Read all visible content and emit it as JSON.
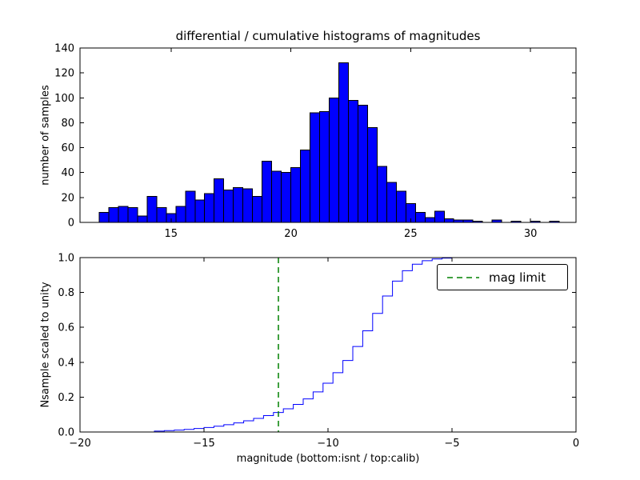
{
  "figure": {
    "title": "differential / cumulative histograms of magnitudes",
    "background_color": "#ffffff"
  },
  "chart_data": [
    {
      "type": "bar",
      "name": "differential-histogram",
      "ylabel": "number of samples",
      "xlim": [
        11.2,
        31.9
      ],
      "ylim": [
        0,
        140
      ],
      "grid": false,
      "xticks": {
        "values": [
          15,
          20,
          25,
          30
        ],
        "labels": [
          "15",
          "20",
          "25",
          "30"
        ]
      },
      "yticks": {
        "values": [
          0,
          20,
          40,
          60,
          80,
          100,
          120,
          140
        ],
        "labels": [
          "0",
          "20",
          "40",
          "60",
          "80",
          "100",
          "120",
          "140"
        ]
      },
      "bar_color": "#0000ff",
      "bar_edge_color": "#000000",
      "bins_start": 12.0,
      "bin_width": 0.4,
      "counts": [
        8,
        12,
        13,
        12,
        5,
        21,
        12,
        7,
        13,
        25,
        18,
        23,
        35,
        26,
        28,
        27,
        21,
        49,
        41,
        40,
        44,
        58,
        88,
        89,
        100,
        128,
        98,
        94,
        76,
        45,
        32,
        25,
        15,
        8,
        4,
        9,
        3,
        2,
        2,
        1,
        0,
        2,
        0,
        1,
        0,
        1,
        0,
        1
      ]
    },
    {
      "type": "line",
      "name": "cumulative-histogram",
      "ylabel": "Nsample scaled to unity",
      "xlabel": "magnitude (bottom:isnt / top:calib)",
      "xlim": [
        -20,
        0
      ],
      "ylim": [
        0.0,
        1.0
      ],
      "grid": false,
      "xticks": {
        "values": [
          -20,
          -15,
          -10,
          -5,
          0
        ],
        "labels": [
          "−20",
          "−15",
          "−10",
          "−5",
          "0"
        ]
      },
      "yticks": {
        "values": [
          0,
          0.2,
          0.4,
          0.6,
          0.8,
          1
        ],
        "labels": [
          "0.0",
          "0.2",
          "0.4",
          "0.6",
          "0.8",
          "1.0"
        ]
      },
      "line_color": "#0000ff",
      "step_points": [
        [
          -20,
          0
        ],
        [
          -17,
          0.005
        ],
        [
          -16.6,
          0.008
        ],
        [
          -16.2,
          0.011
        ],
        [
          -15.8,
          0.015
        ],
        [
          -15.4,
          0.02
        ],
        [
          -15,
          0.026
        ],
        [
          -14.6,
          0.033
        ],
        [
          -14.2,
          0.042
        ],
        [
          -13.8,
          0.052
        ],
        [
          -13.4,
          0.064
        ],
        [
          -13,
          0.078
        ],
        [
          -12.6,
          0.094
        ],
        [
          -12.2,
          0.112
        ],
        [
          -11.8,
          0.133
        ],
        [
          -11.4,
          0.158
        ],
        [
          -11,
          0.19
        ],
        [
          -10.6,
          0.23
        ],
        [
          -10.2,
          0.28
        ],
        [
          -9.8,
          0.34
        ],
        [
          -9.4,
          0.41
        ],
        [
          -9,
          0.49
        ],
        [
          -8.6,
          0.58
        ],
        [
          -8.2,
          0.68
        ],
        [
          -7.8,
          0.78
        ],
        [
          -7.4,
          0.865
        ],
        [
          -7,
          0.925
        ],
        [
          -6.6,
          0.962
        ],
        [
          -6.2,
          0.982
        ],
        [
          -5.8,
          0.992
        ],
        [
          -5.4,
          0.997
        ],
        [
          -5,
          1.0
        ],
        [
          0,
          1.0
        ]
      ],
      "vline": {
        "x": -12,
        "color": "#008000",
        "linestyle": "dashed",
        "label": "mag limit"
      },
      "legend": {
        "position": "upper right",
        "entries": [
          {
            "label": "mag limit",
            "color": "#008000",
            "linestyle": "dashed"
          }
        ]
      }
    }
  ]
}
